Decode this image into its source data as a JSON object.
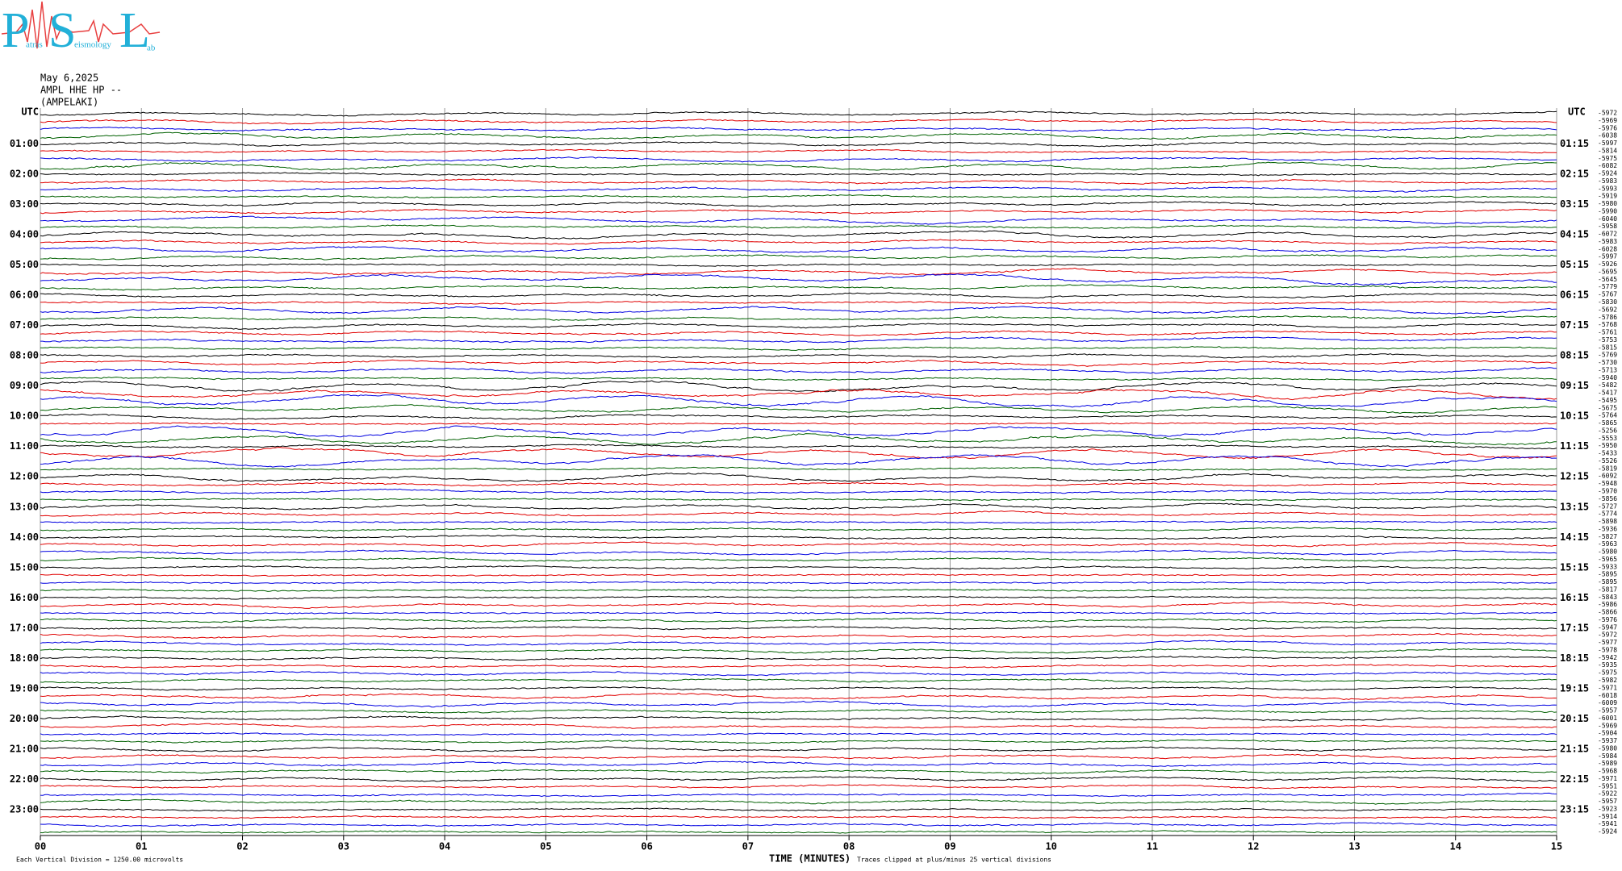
{
  "logo": {
    "parts": [
      "P",
      "atras",
      "S",
      "eismology",
      "L",
      "ab"
    ]
  },
  "chart_data": {
    "type": "helicorder",
    "header": [
      "May 6,2025",
      "AMPL HHE HP --",
      "(AMPELAKI)"
    ],
    "left_labels": [
      "UTC",
      "01:00",
      "02:00",
      "03:00",
      "04:00",
      "05:00",
      "06:00",
      "07:00",
      "08:00",
      "09:00",
      "10:00",
      "11:00",
      "12:00",
      "13:00",
      "14:00",
      "15:00",
      "16:00",
      "17:00",
      "18:00",
      "19:00",
      "20:00",
      "21:00",
      "22:00",
      "23:00"
    ],
    "right_labels": [
      "UTC",
      "01:15",
      "02:15",
      "03:15",
      "04:15",
      "05:15",
      "06:15",
      "07:15",
      "08:15",
      "09:15",
      "10:15",
      "11:15",
      "12:15",
      "13:15",
      "14:15",
      "15:15",
      "16:15",
      "17:15",
      "18:15",
      "19:15",
      "20:15",
      "21:15",
      "22:15",
      "23:15"
    ],
    "trace_colors": [
      "#000000",
      "#e00000",
      "#0000e0",
      "#006000"
    ],
    "offsets": [
      -5972,
      -5969,
      -5976,
      -6038,
      -5997,
      -5814,
      -5975,
      -6082,
      -5924,
      -5983,
      -5993,
      -5919,
      -5980,
      -5990,
      -6040,
      -5958,
      -6072,
      -5983,
      -6028,
      -5997,
      -5926,
      -5695,
      -5645,
      -5779,
      -5767,
      -5830,
      -5692,
      -5786,
      -5768,
      -5761,
      -5753,
      -5815,
      -5769,
      -5730,
      -5713,
      -5940,
      -5482,
      -5417,
      -5495,
      -5675,
      -5764,
      -5865,
      -5256,
      -5553,
      -5950,
      -5433,
      -5526,
      -5819,
      -6092,
      -5948,
      -5970,
      -5856,
      -5727,
      -5774,
      -5898,
      -5936,
      -5827,
      -5963,
      -5980,
      -5965,
      -5933,
      -5895,
      -5895,
      -5817,
      -5843,
      -5986,
      -5866,
      -5976,
      -5947,
      -5972,
      -5977,
      -5978,
      -5942,
      -5935,
      -5975,
      -5982,
      -5971,
      -6018,
      -6009,
      -5957,
      -6001,
      -5969,
      -5904,
      -5937,
      -5980,
      -5984,
      -5989,
      -5968,
      -5971,
      -5951,
      -5922,
      -5957,
      -5923,
      -5914,
      -5941,
      -5924
    ],
    "xlim": [
      0,
      15
    ],
    "xticks": [
      {
        "value": 0,
        "label": "00"
      },
      {
        "value": 1,
        "label": "01"
      },
      {
        "value": 2,
        "label": "02"
      },
      {
        "value": 3,
        "label": "03"
      },
      {
        "value": 4,
        "label": "04"
      },
      {
        "value": 5,
        "label": "05"
      },
      {
        "value": 6,
        "label": "06"
      },
      {
        "value": 7,
        "label": "07"
      },
      {
        "value": 8,
        "label": "08"
      },
      {
        "value": 9,
        "label": "09"
      },
      {
        "value": 10,
        "label": "10"
      },
      {
        "value": 11,
        "label": "11"
      },
      {
        "value": 12,
        "label": "12"
      },
      {
        "value": 13,
        "label": "13"
      },
      {
        "value": 14,
        "label": "14"
      },
      {
        "value": 15,
        "label": "15"
      }
    ],
    "xlabel": "TIME (MINUTES)",
    "clip_note": "Traces clipped at plus/minus 25 vertical divisions",
    "scale_note": "Each Vertical Division = 1250.00 microvolts",
    "grid": true
  }
}
